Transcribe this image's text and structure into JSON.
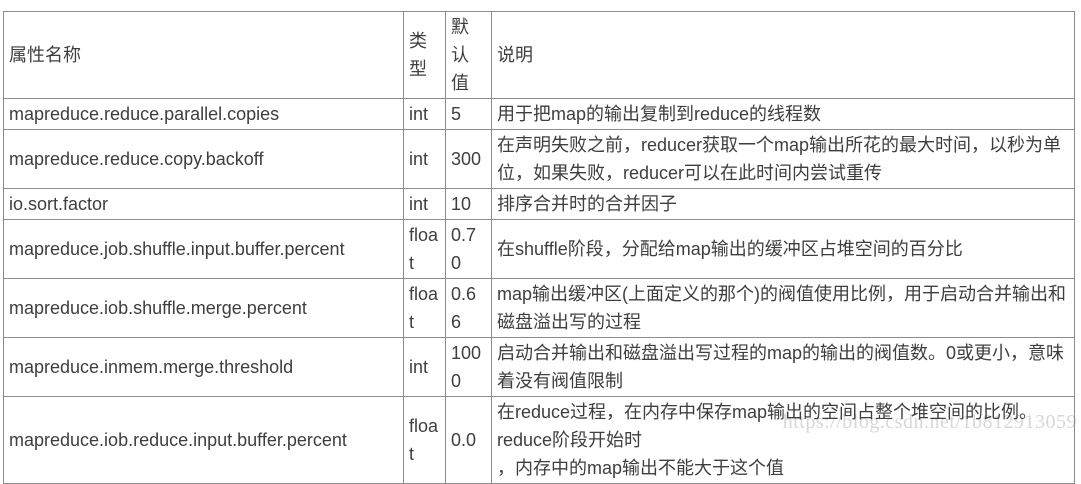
{
  "table": {
    "headers": {
      "name": "属性名称",
      "type": "类型",
      "default": "默认值",
      "description": "说明"
    },
    "rows": [
      {
        "name": "mapreduce.reduce.parallel.copies",
        "type": "int",
        "default": "5",
        "description": "用于把map的输出复制到reduce的线程数"
      },
      {
        "name": "mapreduce.reduce.copy.backoff",
        "type": "int",
        "default": "300",
        "description": "在声明失败之前，reducer获取一个map输出所花的最大时间，以秒为单位，如果失败，reducer可以在此时间内尝试重传"
      },
      {
        "name": "io.sort.factor",
        "type": "int",
        "default": "10",
        "description": "排序合并时的合并因子"
      },
      {
        "name": "mapreduce.job.shuffle.input.buffer.percent",
        "type": "float",
        "default": "0.70",
        "description": "在shuffle阶段，分配给map输出的缓冲区占堆空间的百分比"
      },
      {
        "name": "mapreduce.iob.shuffle.merge.percent",
        "type": "float",
        "default": "0.66",
        "description": "map输出缓冲区(上面定义的那个)的阀值使用比例，用于启动合并输出和磁盘溢出写的过程"
      },
      {
        "name": "mapreduce.inmem.merge.threshold",
        "type": "int",
        "default": "1000",
        "description": "启动合并输出和磁盘溢出写过程的map的输出的阀值数。0或更小，意味着没有阀值限制"
      },
      {
        "name": "mapreduce.iob.reduce.input.buffer.percent",
        "type": "float",
        "default": "0.0",
        "description": "在reduce过程，在内存中保存map输出的空间占整个堆空间的比例。reduce阶段开始时\n，内存中的map输出不能大于这个值"
      }
    ]
  },
  "watermark": {
    "text": "https://blog.csdn.net/1b812913059"
  },
  "colors": {
    "text": "#3e3e3e",
    "border": "#8c8c8c",
    "watermark": "#d7d7d7",
    "background": "#ffffff"
  }
}
